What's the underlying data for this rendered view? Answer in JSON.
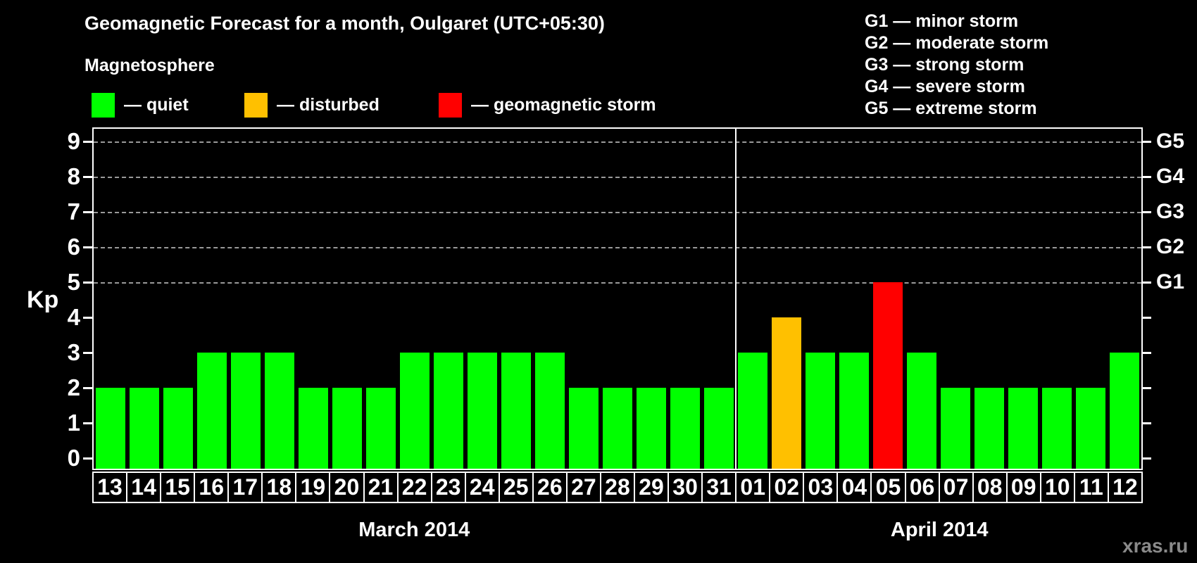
{
  "title": "Geomagnetic Forecast for a month, Oulgaret (UTC+05:30)",
  "magnetosphere_legend": {
    "heading": "Magnetosphere",
    "items": [
      {
        "key": "quiet",
        "label": "— quiet",
        "color": "#00ff00"
      },
      {
        "key": "disturbed",
        "label": "— disturbed",
        "color": "#ffc000"
      },
      {
        "key": "storm",
        "label": "— geomagnetic storm",
        "color": "#ff0000"
      }
    ]
  },
  "g_scale_legend": {
    "items": [
      "G1 — minor storm",
      "G2 — moderate storm",
      "G3 — strong storm",
      "G4 — severe storm",
      "G5 — extreme storm"
    ]
  },
  "watermark": "xras.ru",
  "chart_data": {
    "type": "bar",
    "title": "Geomagnetic Forecast for a month, Oulgaret (UTC+05:30)",
    "ylabel_left": "Kp",
    "ylim": [
      0,
      9
    ],
    "left_ticks": [
      "0",
      "1",
      "2",
      "3",
      "4",
      "5",
      "6",
      "7",
      "8",
      "9"
    ],
    "right_ticks": [
      {
        "label": "G1",
        "kp": 5
      },
      {
        "label": "G2",
        "kp": 6
      },
      {
        "label": "G3",
        "kp": 7
      },
      {
        "label": "G4",
        "kp": 8
      },
      {
        "label": "G5",
        "kp": 9
      }
    ],
    "gridlines_at_kp": [
      5,
      6,
      7,
      8,
      9
    ],
    "grid": "dashed horizontal lines at Kp 5-9 only",
    "legend_position": "top-left",
    "months": [
      {
        "label": "March 2014",
        "days": 19
      },
      {
        "label": "April 2014",
        "days": 12
      }
    ],
    "categories": [
      "13",
      "14",
      "15",
      "16",
      "17",
      "18",
      "19",
      "20",
      "21",
      "22",
      "23",
      "24",
      "25",
      "26",
      "27",
      "28",
      "29",
      "30",
      "31",
      "01",
      "02",
      "03",
      "04",
      "05",
      "06",
      "07",
      "08",
      "09",
      "10",
      "11",
      "12"
    ],
    "series": [
      {
        "name": "Kp forecast",
        "values": [
          2,
          2,
          2,
          3,
          3,
          3,
          2,
          2,
          2,
          3,
          3,
          3,
          3,
          3,
          2,
          2,
          2,
          2,
          2,
          3,
          4,
          3,
          3,
          5,
          3,
          2,
          2,
          2,
          2,
          2,
          3
        ]
      }
    ],
    "statuses": [
      "quiet",
      "quiet",
      "quiet",
      "quiet",
      "quiet",
      "quiet",
      "quiet",
      "quiet",
      "quiet",
      "quiet",
      "quiet",
      "quiet",
      "quiet",
      "quiet",
      "quiet",
      "quiet",
      "quiet",
      "quiet",
      "quiet",
      "quiet",
      "disturbed",
      "quiet",
      "quiet",
      "storm",
      "quiet",
      "quiet",
      "quiet",
      "quiet",
      "quiet",
      "quiet",
      "quiet"
    ],
    "status_colors": {
      "quiet": "#00ff00",
      "disturbed": "#ffc000",
      "storm": "#ff0000"
    }
  }
}
